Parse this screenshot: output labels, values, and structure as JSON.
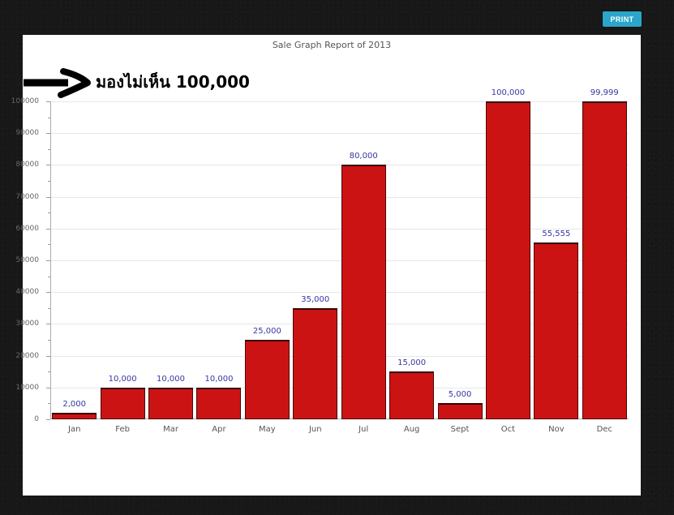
{
  "page": {
    "background": "#181818"
  },
  "toolbar": {
    "print_label": "PRINT",
    "print_color": "#2ba6cb"
  },
  "annotation": {
    "text": "มองไม่เห็น 100,000",
    "arrow_icon": "thick-right-arrow",
    "color": "#000000"
  },
  "chart_data": {
    "type": "bar",
    "title": "Sale Graph Report of 2013",
    "categories": [
      "Jan",
      "Feb",
      "Mar",
      "Apr",
      "May",
      "Jun",
      "Jul",
      "Aug",
      "Sept",
      "Oct",
      "Nov",
      "Dec"
    ],
    "values": [
      2000,
      10000,
      10000,
      10000,
      25000,
      35000,
      80000,
      15000,
      5000,
      100000,
      55555,
      99999
    ],
    "value_labels": [
      "2,000",
      "10,000",
      "10,000",
      "10,000",
      "25,000",
      "35,000",
      "80,000",
      "15,000",
      "5,000",
      "100,000",
      "55,555",
      "99,999"
    ],
    "xlabel": "",
    "ylabel": "",
    "ylim": [
      0,
      100000
    ],
    "y_ticks": [
      0,
      10000,
      20000,
      30000,
      40000,
      50000,
      60000,
      70000,
      80000,
      90000,
      100000
    ],
    "y_tick_labels": [
      "0",
      "10000",
      "20000",
      "30000",
      "40000",
      "50000",
      "60000",
      "70000",
      "80000",
      "90000",
      "100000"
    ],
    "minor_tick_step": 5000,
    "grid": true,
    "legend_position": "none",
    "colors": {
      "bar_fill": "#cc1313",
      "bar_border": "#4a0808",
      "bar_border_top": "#330404",
      "value_label": "#3636a3",
      "grid_line": "#e7e7e7",
      "axis_line": "#aaaaaa",
      "tick_mark": "#999999",
      "axis_text": "#666666",
      "category_text": "#555555",
      "title_text": "#555555"
    }
  }
}
